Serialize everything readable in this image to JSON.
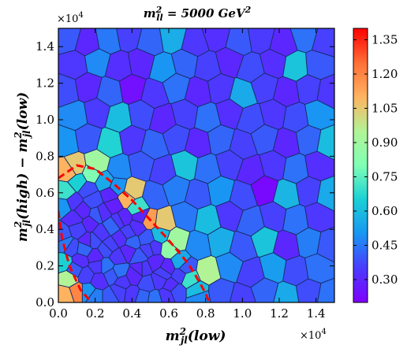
{
  "chart_data": {
    "type": "heatmap",
    "subtype": "voronoi",
    "title": {
      "base": "m",
      "sup": "2",
      "sub": "ll",
      "rest": " = 5000 GeV",
      "rest_sup": "2"
    },
    "xlabel": {
      "base": "m",
      "sup": "2",
      "sub": "jl",
      "rest": "(low)"
    },
    "ylabel": {
      "p1": "m",
      "p1_sup": "2",
      "p1_sub": "jl",
      "p2": "(high) − m",
      "p2_sup": "2",
      "p2_sub": "jl",
      "p3": "(low)"
    },
    "xlim": [
      0,
      15000
    ],
    "ylim": [
      0,
      15000
    ],
    "x_offset_text": {
      "base": "×10",
      "exp": "4"
    },
    "y_offset_text": {
      "base": "×10",
      "exp": "4"
    },
    "xticks": [
      0,
      2000,
      4000,
      6000,
      8000,
      10000,
      12000,
      14000
    ],
    "xtick_labels": [
      "0.0",
      "0.2",
      "0.4",
      "0.6",
      "0.8",
      "1.0",
      "1.2",
      "1.4"
    ],
    "yticks": [
      0,
      2000,
      4000,
      6000,
      8000,
      10000,
      12000,
      14000
    ],
    "ytick_labels": [
      "0.0",
      "0.2",
      "0.4",
      "0.6",
      "0.8",
      "1.0",
      "1.2",
      "1.4"
    ],
    "colorbar": {
      "colormap": "rainbow",
      "vmin": 0.2,
      "vmax": 1.4,
      "ticks": [
        0.3,
        0.45,
        0.6,
        0.75,
        0.9,
        1.05,
        1.2,
        1.35
      ],
      "tick_labels": [
        "0.30",
        "0.45",
        "0.60",
        "0.75",
        "0.90",
        "1.05",
        "1.20",
        "1.35"
      ]
    },
    "boundary_curve": {
      "style": "red-dashed",
      "color": "#ff0000",
      "points": [
        [
          0,
          6800
        ],
        [
          1000,
          7500
        ],
        [
          2000,
          7300
        ],
        [
          3000,
          6500
        ],
        [
          4000,
          5600
        ],
        [
          5000,
          4500
        ],
        [
          6000,
          3400
        ],
        [
          7000,
          2200
        ],
        [
          7500,
          1400
        ],
        [
          8000,
          500
        ],
        [
          8200,
          0
        ]
      ]
    },
    "inner_curve": {
      "style": "red-dashed",
      "color": "#ff0000",
      "points": [
        [
          0,
          5000
        ],
        [
          200,
          3500
        ],
        [
          600,
          2000
        ],
        [
          1200,
          700
        ],
        [
          1800,
          0
        ]
      ]
    },
    "cells": [
      {
        "x": 500,
        "y": 14500,
        "v": 0.4
      },
      {
        "x": 1600,
        "y": 14200,
        "v": 0.3
      },
      {
        "x": 2700,
        "y": 14400,
        "v": 0.45
      },
      {
        "x": 3800,
        "y": 14600,
        "v": 0.36
      },
      {
        "x": 5000,
        "y": 14300,
        "v": 0.42
      },
      {
        "x": 6200,
        "y": 14500,
        "v": 0.56
      },
      {
        "x": 7400,
        "y": 14200,
        "v": 0.34
      },
      {
        "x": 8600,
        "y": 14600,
        "v": 0.32
      },
      {
        "x": 9800,
        "y": 14300,
        "v": 0.4
      },
      {
        "x": 11000,
        "y": 14500,
        "v": 0.35
      },
      {
        "x": 12200,
        "y": 14200,
        "v": 0.3
      },
      {
        "x": 13400,
        "y": 14600,
        "v": 0.44
      },
      {
        "x": 14500,
        "y": 14300,
        "v": 0.36
      },
      {
        "x": 900,
        "y": 13000,
        "v": 0.34
      },
      {
        "x": 2100,
        "y": 13200,
        "v": 0.48
      },
      {
        "x": 3300,
        "y": 12900,
        "v": 0.32
      },
      {
        "x": 4500,
        "y": 13100,
        "v": 0.3
      },
      {
        "x": 5700,
        "y": 12800,
        "v": 0.5
      },
      {
        "x": 6900,
        "y": 13100,
        "v": 0.42
      },
      {
        "x": 8100,
        "y": 12900,
        "v": 0.36
      },
      {
        "x": 9300,
        "y": 13200,
        "v": 0.3
      },
      {
        "x": 10500,
        "y": 12800,
        "v": 0.38
      },
      {
        "x": 11700,
        "y": 13100,
        "v": 0.32
      },
      {
        "x": 12900,
        "y": 12900,
        "v": 0.62
      },
      {
        "x": 14100,
        "y": 13000,
        "v": 0.4
      },
      {
        "x": 400,
        "y": 11600,
        "v": 0.38
      },
      {
        "x": 1600,
        "y": 11800,
        "v": 0.3
      },
      {
        "x": 2800,
        "y": 11500,
        "v": 0.42
      },
      {
        "x": 4000,
        "y": 11700,
        "v": 0.24
      },
      {
        "x": 5200,
        "y": 11400,
        "v": 0.34
      },
      {
        "x": 6400,
        "y": 11800,
        "v": 0.44
      },
      {
        "x": 7600,
        "y": 11500,
        "v": 0.3
      },
      {
        "x": 8800,
        "y": 11700,
        "v": 0.34
      },
      {
        "x": 10000,
        "y": 11400,
        "v": 0.55
      },
      {
        "x": 11200,
        "y": 11800,
        "v": 0.36
      },
      {
        "x": 12400,
        "y": 11500,
        "v": 0.3
      },
      {
        "x": 13600,
        "y": 11700,
        "v": 0.36
      },
      {
        "x": 14700,
        "y": 11500,
        "v": 0.34
      },
      {
        "x": 900,
        "y": 10200,
        "v": 0.48
      },
      {
        "x": 2100,
        "y": 10400,
        "v": 0.35
      },
      {
        "x": 3300,
        "y": 10100,
        "v": 0.6
      },
      {
        "x": 4500,
        "y": 10300,
        "v": 0.38
      },
      {
        "x": 5700,
        "y": 10000,
        "v": 0.3
      },
      {
        "x": 6900,
        "y": 10300,
        "v": 0.36
      },
      {
        "x": 8100,
        "y": 10100,
        "v": 0.44
      },
      {
        "x": 9300,
        "y": 10400,
        "v": 0.32
      },
      {
        "x": 10500,
        "y": 10000,
        "v": 0.38
      },
      {
        "x": 11700,
        "y": 10300,
        "v": 0.34
      },
      {
        "x": 12900,
        "y": 10100,
        "v": 0.38
      },
      {
        "x": 14100,
        "y": 10300,
        "v": 0.5
      },
      {
        "x": 400,
        "y": 8800,
        "v": 0.5
      },
      {
        "x": 1600,
        "y": 9000,
        "v": 0.4
      },
      {
        "x": 2800,
        "y": 8700,
        "v": 0.66
      },
      {
        "x": 4000,
        "y": 8900,
        "v": 0.34
      },
      {
        "x": 5200,
        "y": 8600,
        "v": 0.42
      },
      {
        "x": 6400,
        "y": 9000,
        "v": 0.38
      },
      {
        "x": 7600,
        "y": 8700,
        "v": 0.3
      },
      {
        "x": 8800,
        "y": 8900,
        "v": 0.42
      },
      {
        "x": 10000,
        "y": 8600,
        "v": 0.36
      },
      {
        "x": 11200,
        "y": 9000,
        "v": 0.4
      },
      {
        "x": 12400,
        "y": 8700,
        "v": 0.3
      },
      {
        "x": 13600,
        "y": 8900,
        "v": 0.42
      },
      {
        "x": 14700,
        "y": 8700,
        "v": 0.6
      },
      {
        "x": 900,
        "y": 7400,
        "v": 1.05
      },
      {
        "x": 2100,
        "y": 7600,
        "v": 0.9
      },
      {
        "x": 3300,
        "y": 7300,
        "v": 0.48
      },
      {
        "x": 4500,
        "y": 7500,
        "v": 0.4
      },
      {
        "x": 5700,
        "y": 7200,
        "v": 0.36
      },
      {
        "x": 6900,
        "y": 7500,
        "v": 0.62
      },
      {
        "x": 8100,
        "y": 7300,
        "v": 0.44
      },
      {
        "x": 9300,
        "y": 7600,
        "v": 0.36
      },
      {
        "x": 10500,
        "y": 7200,
        "v": 0.3
      },
      {
        "x": 11700,
        "y": 7500,
        "v": 0.34
      },
      {
        "x": 12900,
        "y": 7300,
        "v": 0.44
      },
      {
        "x": 14100,
        "y": 7500,
        "v": 0.32
      },
      {
        "x": 400,
        "y": 6000,
        "v": 0.7
      },
      {
        "x": 1600,
        "y": 6200,
        "v": 0.38
      },
      {
        "x": 2800,
        "y": 5900,
        "v": 0.3
      },
      {
        "x": 4000,
        "y": 6100,
        "v": 1.05
      },
      {
        "x": 5200,
        "y": 5800,
        "v": 0.42
      },
      {
        "x": 6400,
        "y": 6200,
        "v": 0.46
      },
      {
        "x": 7600,
        "y": 5900,
        "v": 0.4
      },
      {
        "x": 8800,
        "y": 6100,
        "v": 0.5
      },
      {
        "x": 10000,
        "y": 5800,
        "v": 0.38
      },
      {
        "x": 11200,
        "y": 6200,
        "v": 0.22
      },
      {
        "x": 12400,
        "y": 5900,
        "v": 0.58
      },
      {
        "x": 13600,
        "y": 6100,
        "v": 0.36
      },
      {
        "x": 14700,
        "y": 5900,
        "v": 0.55
      },
      {
        "x": 900,
        "y": 4600,
        "v": 0.32
      },
      {
        "x": 2100,
        "y": 4800,
        "v": 0.4
      },
      {
        "x": 3300,
        "y": 4500,
        "v": 0.34
      },
      {
        "x": 4500,
        "y": 4700,
        "v": 0.3
      },
      {
        "x": 5700,
        "y": 4400,
        "v": 1.05
      },
      {
        "x": 6900,
        "y": 4700,
        "v": 0.45
      },
      {
        "x": 8100,
        "y": 4500,
        "v": 0.6
      },
      {
        "x": 9300,
        "y": 4800,
        "v": 0.34
      },
      {
        "x": 10500,
        "y": 4400,
        "v": 0.42
      },
      {
        "x": 11700,
        "y": 4700,
        "v": 0.36
      },
      {
        "x": 12900,
        "y": 4500,
        "v": 0.44
      },
      {
        "x": 14100,
        "y": 4700,
        "v": 0.34
      },
      {
        "x": 400,
        "y": 3200,
        "v": 0.45
      },
      {
        "x": 1600,
        "y": 3400,
        "v": 0.3
      },
      {
        "x": 2800,
        "y": 3100,
        "v": 0.36
      },
      {
        "x": 4000,
        "y": 3300,
        "v": 0.42
      },
      {
        "x": 5200,
        "y": 3000,
        "v": 0.34
      },
      {
        "x": 6400,
        "y": 3400,
        "v": 0.9
      },
      {
        "x": 7600,
        "y": 3100,
        "v": 0.48
      },
      {
        "x": 8800,
        "y": 3300,
        "v": 0.56
      },
      {
        "x": 10000,
        "y": 3000,
        "v": 0.4
      },
      {
        "x": 11200,
        "y": 3400,
        "v": 0.62
      },
      {
        "x": 12400,
        "y": 3100,
        "v": 0.3
      },
      {
        "x": 13600,
        "y": 3300,
        "v": 0.46
      },
      {
        "x": 14700,
        "y": 3100,
        "v": 0.4
      },
      {
        "x": 900,
        "y": 1800,
        "v": 0.4
      },
      {
        "x": 2100,
        "y": 2000,
        "v": 0.34
      },
      {
        "x": 3300,
        "y": 1700,
        "v": 0.44
      },
      {
        "x": 4500,
        "y": 1900,
        "v": 0.3
      },
      {
        "x": 5700,
        "y": 1600,
        "v": 0.36
      },
      {
        "x": 6900,
        "y": 1900,
        "v": 0.4
      },
      {
        "x": 8100,
        "y": 1700,
        "v": 0.95
      },
      {
        "x": 9300,
        "y": 2000,
        "v": 0.48
      },
      {
        "x": 10500,
        "y": 1600,
        "v": 0.36
      },
      {
        "x": 11700,
        "y": 1900,
        "v": 0.52
      },
      {
        "x": 12900,
        "y": 1700,
        "v": 0.38
      },
      {
        "x": 14100,
        "y": 1900,
        "v": 0.44
      },
      {
        "x": 400,
        "y": 400,
        "v": 1.1
      },
      {
        "x": 1600,
        "y": 600,
        "v": 0.5
      },
      {
        "x": 2800,
        "y": 300,
        "v": 0.4
      },
      {
        "x": 4000,
        "y": 500,
        "v": 0.34
      },
      {
        "x": 5200,
        "y": 200,
        "v": 0.44
      },
      {
        "x": 6400,
        "y": 600,
        "v": 0.38
      },
      {
        "x": 7600,
        "y": 300,
        "v": 0.48
      },
      {
        "x": 8800,
        "y": 500,
        "v": 0.4
      },
      {
        "x": 10000,
        "y": 200,
        "v": 0.36
      },
      {
        "x": 11200,
        "y": 600,
        "v": 0.42
      },
      {
        "x": 12400,
        "y": 300,
        "v": 0.55
      },
      {
        "x": 13600,
        "y": 500,
        "v": 0.38
      },
      {
        "x": 14700,
        "y": 300,
        "v": 0.44
      },
      {
        "x": 600,
        "y": 7200,
        "v": 1.1
      },
      {
        "x": 1100,
        "y": 6600,
        "v": 0.65
      },
      {
        "x": 1800,
        "y": 7000,
        "v": 0.8
      },
      {
        "x": 2500,
        "y": 6600,
        "v": 0.55
      },
      {
        "x": 3200,
        "y": 6300,
        "v": 0.5
      },
      {
        "x": 3700,
        "y": 5700,
        "v": 1.1
      },
      {
        "x": 4300,
        "y": 5200,
        "v": 0.7
      },
      {
        "x": 4900,
        "y": 4500,
        "v": 1.15
      },
      {
        "x": 5500,
        "y": 3700,
        "v": 0.6
      },
      {
        "x": 6000,
        "y": 2900,
        "v": 0.85
      },
      {
        "x": 6600,
        "y": 2200,
        "v": 0.55
      },
      {
        "x": 7100,
        "y": 1300,
        "v": 0.7
      },
      {
        "x": 7500,
        "y": 600,
        "v": 0.6
      },
      {
        "x": 300,
        "y": 5300,
        "v": 0.5
      },
      {
        "x": 300,
        "y": 2200,
        "v": 0.65
      },
      {
        "x": 600,
        "y": 1300,
        "v": 0.95
      },
      {
        "x": 1000,
        "y": 600,
        "v": 1.2
      },
      {
        "x": 200,
        "y": 3700,
        "v": 0.4
      },
      {
        "x": 800,
        "y": 5500,
        "v": 0.34
      },
      {
        "x": 1300,
        "y": 5000,
        "v": 0.3
      },
      {
        "x": 1900,
        "y": 5600,
        "v": 0.38
      },
      {
        "x": 2400,
        "y": 4900,
        "v": 0.32
      },
      {
        "x": 3000,
        "y": 5300,
        "v": 0.28
      },
      {
        "x": 1100,
        "y": 4000,
        "v": 0.36
      },
      {
        "x": 1700,
        "y": 4300,
        "v": 0.3
      },
      {
        "x": 2300,
        "y": 3800,
        "v": 0.34
      },
      {
        "x": 2900,
        "y": 4200,
        "v": 0.42
      },
      {
        "x": 3500,
        "y": 4600,
        "v": 0.3
      },
      {
        "x": 3800,
        "y": 3800,
        "v": 0.36
      },
      {
        "x": 4300,
        "y": 4100,
        "v": 0.32
      },
      {
        "x": 1400,
        "y": 2900,
        "v": 0.42
      },
      {
        "x": 2000,
        "y": 2500,
        "v": 0.3
      },
      {
        "x": 2600,
        "y": 2900,
        "v": 0.38
      },
      {
        "x": 3200,
        "y": 2500,
        "v": 0.34
      },
      {
        "x": 3800,
        "y": 2800,
        "v": 0.3
      },
      {
        "x": 4400,
        "y": 2500,
        "v": 0.4
      },
      {
        "x": 4900,
        "y": 2900,
        "v": 0.36
      },
      {
        "x": 5300,
        "y": 2200,
        "v": 0.3
      },
      {
        "x": 1500,
        "y": 1500,
        "v": 0.36
      },
      {
        "x": 2200,
        "y": 1200,
        "v": 0.32
      },
      {
        "x": 2900,
        "y": 1500,
        "v": 0.4
      },
      {
        "x": 3500,
        "y": 1100,
        "v": 0.34
      },
      {
        "x": 4100,
        "y": 1400,
        "v": 0.3
      },
      {
        "x": 4800,
        "y": 1000,
        "v": 0.38
      },
      {
        "x": 5500,
        "y": 1200,
        "v": 0.34
      },
      {
        "x": 6100,
        "y": 900,
        "v": 0.32
      },
      {
        "x": 6600,
        "y": 1500,
        "v": 0.36
      },
      {
        "x": 2000,
        "y": 300,
        "v": 0.46
      },
      {
        "x": 3300,
        "y": 600,
        "v": 0.36
      },
      {
        "x": 4600,
        "y": 300,
        "v": 0.42
      },
      {
        "x": 5900,
        "y": 400,
        "v": 0.34
      },
      {
        "x": 1900,
        "y": 3400,
        "v": 0.38
      },
      {
        "x": 3400,
        "y": 3500,
        "v": 0.32
      },
      {
        "x": 4800,
        "y": 3500,
        "v": 0.4
      },
      {
        "x": 4600,
        "y": 1900,
        "v": 0.34
      },
      {
        "x": 5900,
        "y": 1900,
        "v": 0.3
      },
      {
        "x": 2600,
        "y": 2000,
        "v": 0.44
      },
      {
        "x": 1200,
        "y": 2300,
        "v": 0.32
      },
      {
        "x": 700,
        "y": 3000,
        "v": 0.38
      }
    ]
  }
}
